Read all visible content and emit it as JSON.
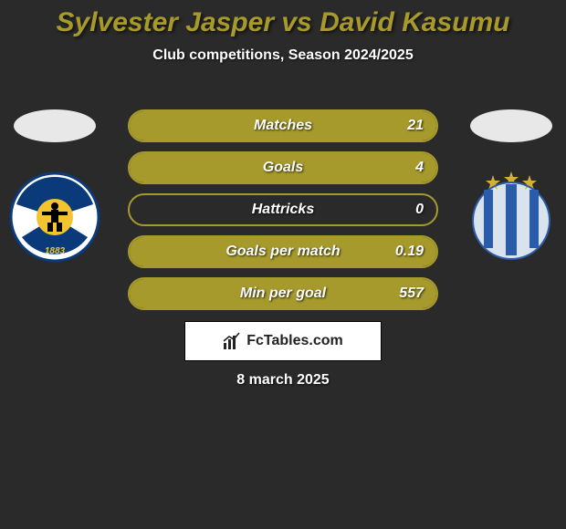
{
  "title": {
    "text": "Sylvester Jasper vs David Kasumu",
    "color_left": "#a89a2a",
    "color_right": "#a89a2a",
    "fontsize": 30
  },
  "subtitle": {
    "text": "Club competitions, Season 2024/2025",
    "fontsize": 16
  },
  "accent_color": "#a79a2c",
  "background_color": "#2a2a2a",
  "players": {
    "left": {
      "name": "Sylvester Jasper",
      "club": "Bristol Rovers",
      "badge": {
        "bg": "#ffffff",
        "ring": "#0a3a7a",
        "inner": "#0a3a7a",
        "text": "1883",
        "text_color": "#f4c430"
      }
    },
    "right": {
      "name": "David Kasumu",
      "club": "Huddersfield",
      "badge": {
        "bg": "#d9e3ee",
        "stripe": "#2a5caa",
        "star": "#d4af37"
      }
    }
  },
  "stats": {
    "label_fontsize": 16,
    "value_fontsize": 16,
    "border_color": "#a79a2c",
    "rows": [
      {
        "label": "Matches",
        "left_val": "",
        "right_val": "21",
        "left_pct": 0,
        "right_pct": 100
      },
      {
        "label": "Goals",
        "left_val": "",
        "right_val": "4",
        "left_pct": 0,
        "right_pct": 100
      },
      {
        "label": "Hattricks",
        "left_val": "",
        "right_val": "0",
        "left_pct": 0,
        "right_pct": 0
      },
      {
        "label": "Goals per match",
        "left_val": "",
        "right_val": "0.19",
        "left_pct": 0,
        "right_pct": 100
      },
      {
        "label": "Min per goal",
        "left_val": "",
        "right_val": "557",
        "left_pct": 0,
        "right_pct": 100
      }
    ]
  },
  "brand": {
    "text": "FcTables.com",
    "fontsize": 16
  },
  "date": {
    "text": "8 march 2025",
    "fontsize": 16
  }
}
